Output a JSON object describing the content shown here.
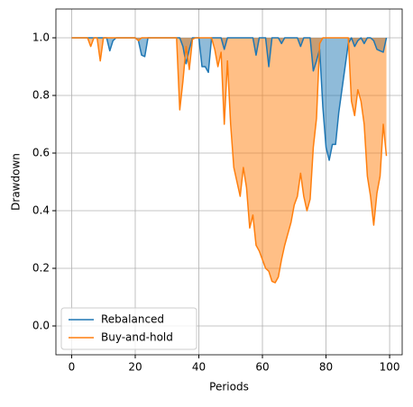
{
  "chart_data": {
    "type": "line",
    "xlabel": "Periods",
    "ylabel": "Drawdown",
    "x": [
      0,
      1,
      2,
      3,
      4,
      5,
      6,
      7,
      8,
      9,
      10,
      11,
      12,
      13,
      14,
      15,
      16,
      17,
      18,
      19,
      20,
      21,
      22,
      23,
      24,
      25,
      26,
      27,
      28,
      29,
      30,
      31,
      32,
      33,
      34,
      35,
      36,
      37,
      38,
      39,
      40,
      41,
      42,
      43,
      44,
      45,
      46,
      47,
      48,
      49,
      50,
      51,
      52,
      53,
      54,
      55,
      56,
      57,
      58,
      59,
      60,
      61,
      62,
      63,
      64,
      65,
      66,
      67,
      68,
      69,
      70,
      71,
      72,
      73,
      74,
      75,
      76,
      77,
      78,
      79,
      80,
      81,
      82,
      83,
      84,
      85,
      86,
      87,
      88,
      89,
      90,
      91,
      92,
      93,
      94,
      95,
      96,
      97,
      98,
      99
    ],
    "series": [
      {
        "name": "Rebalanced",
        "color": "#1f77b4",
        "values": [
          1,
          1,
          1,
          1,
          1,
          1,
          1,
          1,
          1,
          1,
          1,
          1,
          0.955,
          0.99,
          1,
          1,
          1,
          1,
          1,
          1,
          1,
          0.99,
          0.94,
          0.935,
          1,
          1,
          1,
          1,
          1,
          1,
          1,
          1,
          1,
          1,
          1,
          0.97,
          0.91,
          0.96,
          1,
          1,
          1,
          0.9,
          0.9,
          0.88,
          1,
          1,
          1,
          1,
          0.96,
          1,
          1,
          1,
          1,
          1,
          1,
          1,
          1,
          1,
          0.94,
          1,
          1,
          1,
          0.9,
          1,
          1,
          1,
          0.98,
          1,
          1,
          1,
          1,
          1,
          0.97,
          1,
          1,
          1,
          0.885,
          0.92,
          0.96,
          0.76,
          0.62,
          0.575,
          0.63,
          0.63,
          0.74,
          0.82,
          0.9,
          0.98,
          1,
          0.97,
          0.99,
          1,
          0.98,
          1,
          1,
          0.99,
          0.96,
          0.955,
          0.95,
          1
        ]
      },
      {
        "name": "Buy-and-hold",
        "color": "#ff7f0e",
        "values": [
          1,
          1,
          1,
          1,
          1,
          1,
          0.97,
          1,
          1,
          0.92,
          1,
          1,
          1,
          1,
          1,
          1,
          1,
          1,
          1,
          1,
          1,
          0.99,
          1,
          1,
          1,
          1,
          1,
          1,
          1,
          1,
          1,
          1,
          1,
          1,
          0.75,
          0.85,
          0.97,
          0.89,
          0.995,
          1,
          1,
          1,
          1,
          1,
          1,
          0.96,
          0.9,
          0.95,
          0.7,
          0.92,
          0.7,
          0.55,
          0.5,
          0.45,
          0.55,
          0.48,
          0.34,
          0.385,
          0.28,
          0.26,
          0.23,
          0.2,
          0.19,
          0.155,
          0.15,
          0.17,
          0.23,
          0.28,
          0.32,
          0.36,
          0.42,
          0.45,
          0.53,
          0.45,
          0.4,
          0.44,
          0.62,
          0.72,
          0.98,
          1,
          1,
          1,
          1,
          1,
          1,
          1,
          1,
          1,
          0.78,
          0.73,
          0.82,
          0.78,
          0.7,
          0.52,
          0.45,
          0.35,
          0.46,
          0.52,
          0.7,
          0.59
        ]
      }
    ],
    "fill_to": 1,
    "xlim": [
      -4.95,
      103.95
    ],
    "ylim": [
      -0.1,
      1.1
    ],
    "xticks": [
      0,
      20,
      40,
      60,
      80,
      100
    ],
    "yticks": [
      {
        "value": 0,
        "label": "0.0"
      },
      {
        "value": 0.2,
        "label": "0.2"
      },
      {
        "value": 0.4,
        "label": "0.4"
      },
      {
        "value": 0.6,
        "label": "0.6"
      },
      {
        "value": 0.8,
        "label": "0.8"
      },
      {
        "value": 1,
        "label": "1.0"
      }
    ],
    "grid": true,
    "legend": "lower left"
  }
}
